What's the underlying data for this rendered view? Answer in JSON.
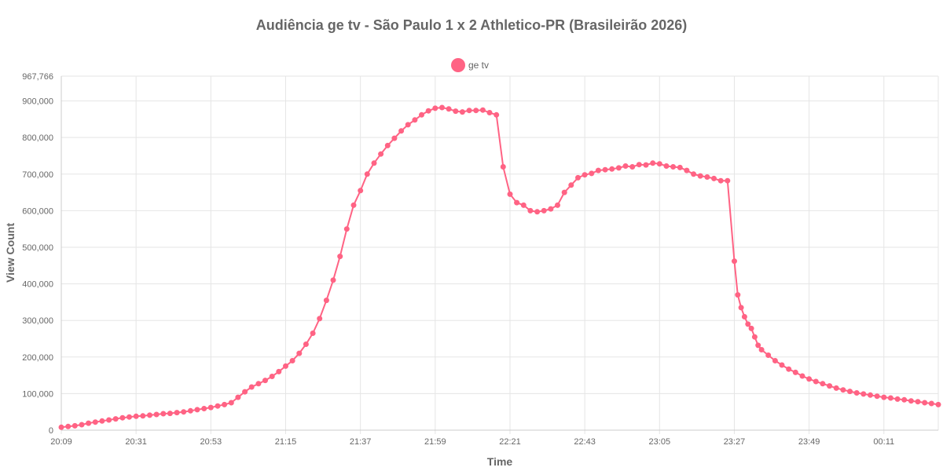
{
  "chart_data": {
    "type": "line",
    "title": "Audiência ge tv - São Paulo 1 x 2 Athletico-PR (Brasileirão 2026)",
    "xlabel": "Time",
    "ylabel": "View Count",
    "legend_position": "top-center",
    "grid": true,
    "ylim": [
      0,
      967766
    ],
    "y_ticks": [
      "0",
      "100,000",
      "200,000",
      "300,000",
      "400,000",
      "500,000",
      "600,000",
      "700,000",
      "800,000",
      "900,000",
      "967,766"
    ],
    "x_ticks": [
      "20:09",
      "20:31",
      "20:53",
      "21:15",
      "21:37",
      "21:59",
      "22:21",
      "22:43",
      "23:05",
      "23:27",
      "23:49",
      "00:11"
    ],
    "series": [
      {
        "name": "ge tv",
        "color": "#ff6384",
        "points": [
          [
            "20:09",
            8000
          ],
          [
            "20:11",
            10000
          ],
          [
            "20:13",
            12000
          ],
          [
            "20:15",
            15000
          ],
          [
            "20:17",
            19000
          ],
          [
            "20:19",
            22000
          ],
          [
            "20:21",
            25000
          ],
          [
            "20:23",
            28000
          ],
          [
            "20:25",
            31000
          ],
          [
            "20:27",
            34000
          ],
          [
            "20:29",
            36000
          ],
          [
            "20:31",
            38000
          ],
          [
            "20:33",
            39000
          ],
          [
            "20:35",
            41000
          ],
          [
            "20:37",
            43000
          ],
          [
            "20:39",
            45000
          ],
          [
            "20:41",
            46000
          ],
          [
            "20:43",
            48000
          ],
          [
            "20:45",
            50000
          ],
          [
            "20:47",
            53000
          ],
          [
            "20:49",
            56000
          ],
          [
            "20:51",
            59000
          ],
          [
            "20:53",
            62000
          ],
          [
            "20:55",
            66000
          ],
          [
            "20:57",
            70000
          ],
          [
            "20:59",
            75000
          ],
          [
            "21:01",
            90000
          ],
          [
            "21:03",
            105000
          ],
          [
            "21:05",
            118000
          ],
          [
            "21:07",
            127000
          ],
          [
            "21:09",
            136000
          ],
          [
            "21:11",
            147000
          ],
          [
            "21:13",
            160000
          ],
          [
            "21:15",
            175000
          ],
          [
            "21:17",
            190000
          ],
          [
            "21:19",
            210000
          ],
          [
            "21:21",
            235000
          ],
          [
            "21:23",
            265000
          ],
          [
            "21:25",
            305000
          ],
          [
            "21:27",
            355000
          ],
          [
            "21:29",
            410000
          ],
          [
            "21:31",
            475000
          ],
          [
            "21:33",
            550000
          ],
          [
            "21:35",
            615000
          ],
          [
            "21:37",
            655000
          ],
          [
            "21:39",
            700000
          ],
          [
            "21:41",
            730000
          ],
          [
            "21:43",
            755000
          ],
          [
            "21:45",
            778000
          ],
          [
            "21:47",
            798000
          ],
          [
            "21:49",
            818000
          ],
          [
            "21:51",
            835000
          ],
          [
            "21:53",
            848000
          ],
          [
            "21:55",
            862000
          ],
          [
            "21:57",
            873000
          ],
          [
            "21:59",
            880000
          ],
          [
            "22:01",
            882000
          ],
          [
            "22:03",
            878000
          ],
          [
            "22:05",
            872000
          ],
          [
            "22:07",
            870000
          ],
          [
            "22:09",
            874000
          ],
          [
            "22:11",
            874000
          ],
          [
            "22:13",
            875000
          ],
          [
            "22:15",
            868000
          ],
          [
            "22:17",
            862000
          ],
          [
            "22:19",
            720000
          ],
          [
            "22:21",
            645000
          ],
          [
            "22:23",
            622000
          ],
          [
            "22:25",
            615000
          ],
          [
            "22:27",
            600000
          ],
          [
            "22:29",
            597000
          ],
          [
            "22:31",
            600000
          ],
          [
            "22:33",
            605000
          ],
          [
            "22:35",
            615000
          ],
          [
            "22:37",
            650000
          ],
          [
            "22:39",
            670000
          ],
          [
            "22:41",
            690000
          ],
          [
            "22:43",
            698000
          ],
          [
            "22:45",
            702000
          ],
          [
            "22:47",
            710000
          ],
          [
            "22:49",
            712000
          ],
          [
            "22:51",
            714000
          ],
          [
            "22:53",
            717000
          ],
          [
            "22:55",
            722000
          ],
          [
            "22:57",
            720000
          ],
          [
            "22:59",
            726000
          ],
          [
            "23:01",
            725000
          ],
          [
            "23:03",
            730000
          ],
          [
            "23:05",
            728000
          ],
          [
            "23:07",
            722000
          ],
          [
            "23:09",
            720000
          ],
          [
            "23:11",
            718000
          ],
          [
            "23:13",
            710000
          ],
          [
            "23:15",
            700000
          ],
          [
            "23:17",
            695000
          ],
          [
            "23:19",
            692000
          ],
          [
            "23:21",
            688000
          ],
          [
            "23:23",
            682000
          ],
          [
            "23:25",
            682000
          ],
          [
            "23:27",
            462000
          ],
          [
            "23:28",
            370000
          ],
          [
            "23:29",
            335000
          ],
          [
            "23:30",
            310000
          ],
          [
            "23:31",
            290000
          ],
          [
            "23:32",
            278000
          ],
          [
            "23:33",
            255000
          ],
          [
            "23:34",
            232000
          ],
          [
            "23:35",
            220000
          ],
          [
            "23:37",
            205000
          ],
          [
            "23:39",
            190000
          ],
          [
            "23:41",
            178000
          ],
          [
            "23:43",
            167000
          ],
          [
            "23:45",
            158000
          ],
          [
            "23:47",
            148000
          ],
          [
            "23:49",
            140000
          ],
          [
            "23:51",
            133000
          ],
          [
            "23:53",
            127000
          ],
          [
            "23:55",
            121000
          ],
          [
            "23:57",
            115000
          ],
          [
            "23:59",
            110000
          ],
          [
            "00:01",
            106000
          ],
          [
            "00:03",
            102000
          ],
          [
            "00:05",
            99000
          ],
          [
            "00:07",
            96000
          ],
          [
            "00:09",
            93000
          ],
          [
            "00:11",
            90000
          ],
          [
            "00:13",
            88000
          ],
          [
            "00:15",
            85000
          ],
          [
            "00:17",
            83000
          ],
          [
            "00:19",
            80000
          ],
          [
            "00:21",
            78000
          ],
          [
            "00:23",
            75000
          ],
          [
            "00:25",
            73000
          ],
          [
            "00:27",
            70000
          ]
        ]
      }
    ]
  }
}
